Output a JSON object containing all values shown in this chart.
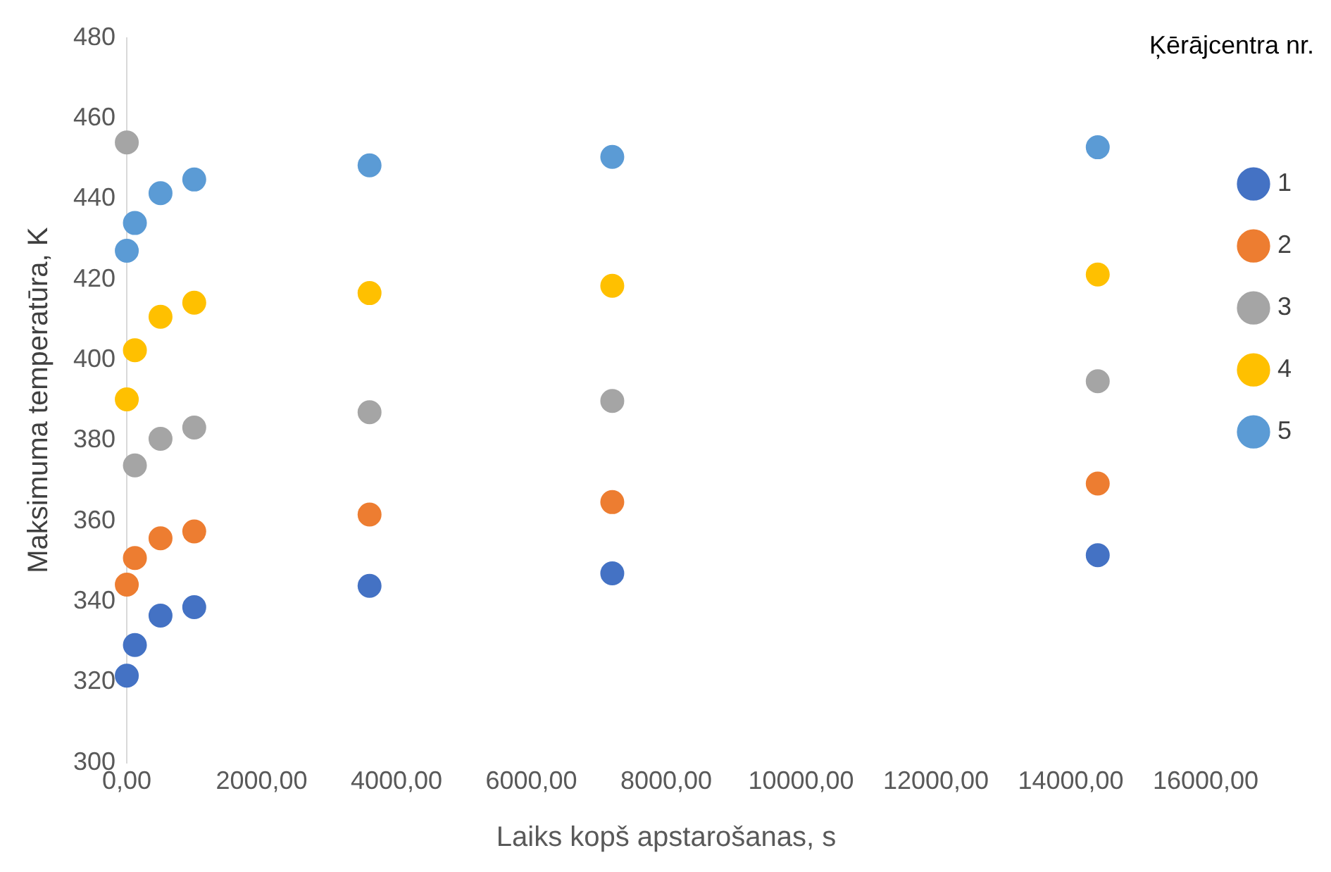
{
  "chart_data": {
    "type": "scatter",
    "xlabel": "Laiks kopš apstarošanas, s",
    "ylabel": "Maksimuma temperatūra, K",
    "legend_title": "Ķērājcentra nr.",
    "legend": "right",
    "grid": false,
    "marker": "circle",
    "x": [
      0,
      120,
      500,
      1000,
      3600,
      7200,
      14400
    ],
    "xlim": [
      0,
      16000
    ],
    "xticks": [
      {
        "value": 0,
        "label": "0,00"
      },
      {
        "value": 2000,
        "label": "2000,00"
      },
      {
        "value": 4000,
        "label": "4000,00"
      },
      {
        "value": 6000,
        "label": "6000,00"
      },
      {
        "value": 8000,
        "label": "8000,00"
      },
      {
        "value": 10000,
        "label": "10000,00"
      },
      {
        "value": 12000,
        "label": "12000,00"
      },
      {
        "value": 14000,
        "label": "14000,00"
      },
      {
        "value": 16000,
        "label": "16000,00"
      }
    ],
    "ylim": [
      300,
      480
    ],
    "yticks": [
      300,
      320,
      340,
      360,
      380,
      400,
      420,
      440,
      460,
      480
    ],
    "series": [
      {
        "name": "1",
        "color": "#4472c4",
        "values": [
          321.6,
          329.2,
          336.5,
          338.6,
          343.9,
          347,
          351.5
        ]
      },
      {
        "name": "2",
        "color": "#ed7d31",
        "values": [
          344.2,
          350.8,
          355.7,
          357.4,
          361.6,
          364.7,
          369.3
        ]
      },
      {
        "name": "3",
        "color": "#a5a5a5",
        "values": [
          454,
          373.8,
          380.4,
          383.2,
          387,
          389.8,
          394.7
        ]
      },
      {
        "name": "4",
        "color": "#ffc000",
        "values": [
          390.2,
          402.4,
          410.7,
          414.2,
          416.6,
          418.4,
          421.2
        ]
      },
      {
        "name": "5",
        "color": "#5b9bd5",
        "values": [
          427.1,
          434,
          441.4,
          444.8,
          448.3,
          450.4,
          452.8
        ]
      }
    ]
  }
}
